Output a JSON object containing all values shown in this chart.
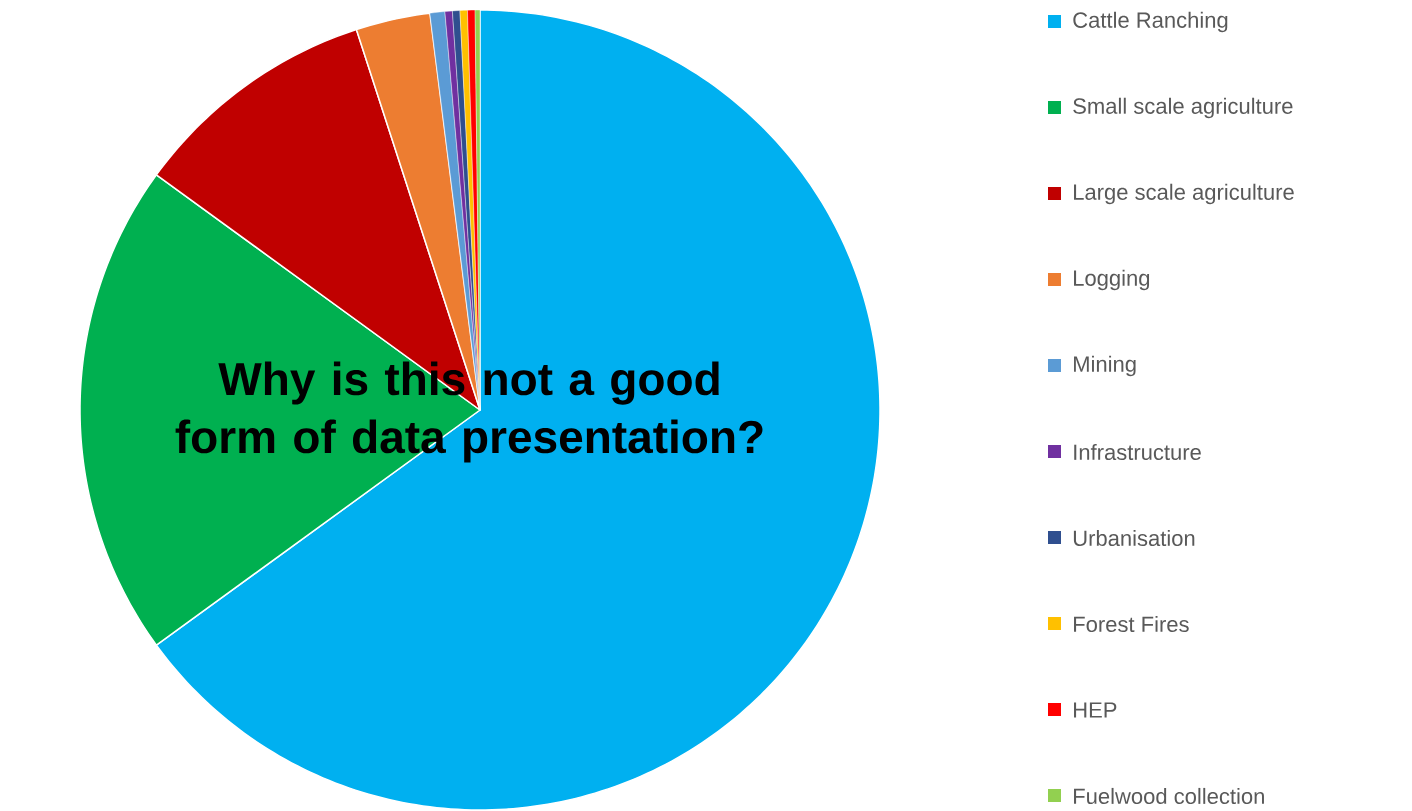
{
  "chart_data": {
    "type": "pie",
    "categories": [
      "Cattle Ranching",
      "Small scale agriculture",
      "Large scale agriculture",
      "Logging",
      "Mining",
      "Infrastructure",
      "Urbanisation",
      "Forest Fires",
      "HEP",
      "Fuelwood collection"
    ],
    "values": [
      65,
      20,
      10,
      3,
      0.6,
      0.3,
      0.3,
      0.3,
      0.3,
      0.2
    ],
    "colors": [
      "#00b0f0",
      "#00b050",
      "#c00000",
      "#ed7d31",
      "#5b9bd5",
      "#7030a0",
      "#2f4f8f",
      "#ffc000",
      "#ff0000",
      "#92d050"
    ],
    "legend": "right",
    "annotations": [
      "Why is this not a good form of data presentation?"
    ]
  }
}
